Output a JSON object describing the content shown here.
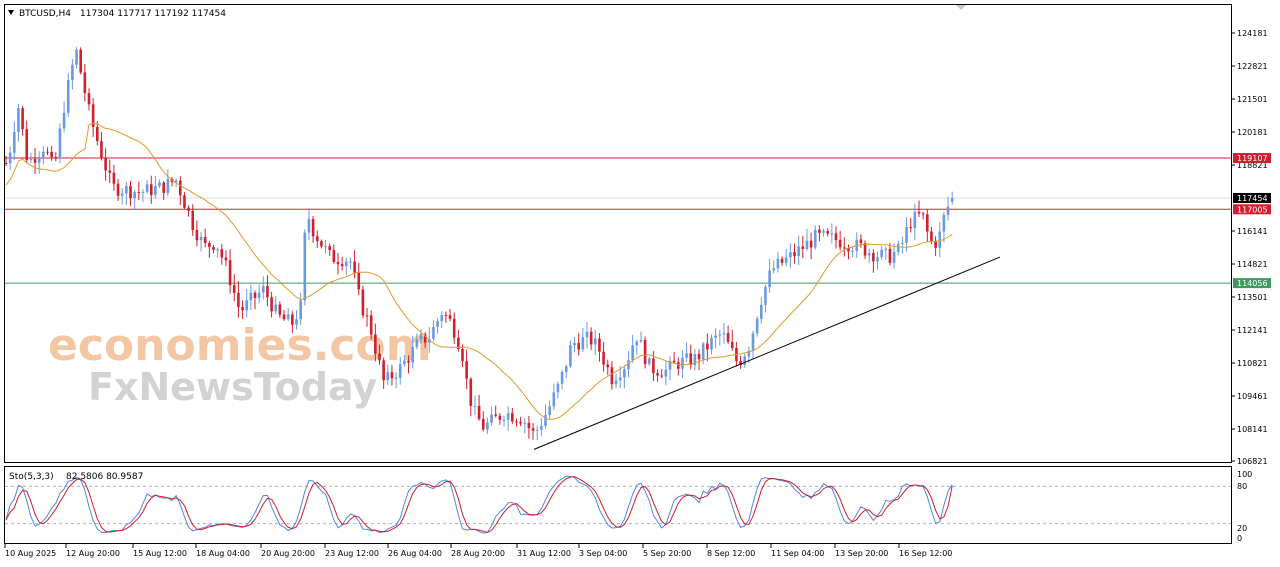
{
  "header": {
    "symbol": "BTCUSD,H4",
    "ohlc": "117304 117717 117192 117454"
  },
  "watermark": {
    "line1": "economies.com",
    "line2": "FxNewsToday"
  },
  "colors": {
    "bull": "#6a9be0",
    "bear": "#d21e2d",
    "ma": "#e09a2a",
    "resistance": "#d21e2d",
    "support": "#3f9a60",
    "trendline": "#000000",
    "stoch_main": "#4f86e6",
    "stoch_signal": "#d21e2d"
  },
  "chart_data": [
    {
      "type": "candlestick",
      "symbol": "BTCUSD",
      "timeframe": "H4",
      "last": {
        "open": 117304,
        "high": 117717,
        "low": 117192,
        "close": 117454
      },
      "ylim": [
        106821,
        125000
      ],
      "price_ticks": [
        "124181",
        "122821",
        "121501",
        "120181",
        "118821",
        "116141",
        "114821",
        "113501",
        "112141",
        "110821",
        "109461",
        "108141",
        "106821"
      ],
      "time_ticks": [
        "10 Aug 2025",
        "12 Aug 20:00",
        "15 Aug 12:00",
        "18 Aug 04:00",
        "20 Aug 20:00",
        "23 Aug 12:00",
        "26 Aug 04:00",
        "28 Aug 20:00",
        "31 Aug 12:00",
        "3 Sep 04:00",
        "5 Sep 20:00",
        "8 Sep 12:00",
        "11 Sep 04:00",
        "13 Sep 20:00",
        "16 Sep 12:00"
      ],
      "horizontal_levels": [
        {
          "value": 119107,
          "label": "119107",
          "role": "resistance"
        },
        {
          "value": 117005,
          "label": "117005",
          "role": "resistance"
        },
        {
          "value": 114056,
          "label": "114056",
          "role": "support"
        }
      ],
      "current_price_label": "117454",
      "trendline": {
        "start": {
          "time": "31 Aug 12:00",
          "value": 107300
        },
        "end_value": 115100
      },
      "close_path": [
        [
          0,
          118600
        ],
        [
          8,
          119000
        ],
        [
          18,
          121300
        ],
        [
          28,
          118900
        ],
        [
          44,
          119600
        ],
        [
          54,
          118600
        ],
        [
          64,
          121200
        ],
        [
          76,
          123500
        ],
        [
          90,
          120800
        ],
        [
          112,
          117900
        ],
        [
          140,
          117700
        ],
        [
          162,
          117900
        ],
        [
          176,
          118200
        ],
        [
          192,
          116500
        ],
        [
          204,
          115500
        ],
        [
          216,
          115700
        ],
        [
          228,
          114500
        ],
        [
          240,
          112900
        ],
        [
          252,
          113400
        ],
        [
          264,
          113800
        ],
        [
          278,
          112700
        ],
        [
          292,
          112400
        ],
        [
          302,
          113200
        ],
        [
          306,
          117000
        ],
        [
          314,
          116100
        ],
        [
          330,
          115100
        ],
        [
          350,
          115000
        ],
        [
          360,
          113300
        ],
        [
          370,
          112300
        ],
        [
          384,
          110000
        ],
        [
          400,
          110600
        ],
        [
          420,
          111700
        ],
        [
          430,
          111900
        ],
        [
          442,
          112900
        ],
        [
          452,
          112400
        ],
        [
          462,
          111300
        ],
        [
          468,
          109700
        ],
        [
          474,
          108800
        ],
        [
          484,
          108200
        ],
        [
          504,
          108800
        ],
        [
          522,
          108600
        ],
        [
          534,
          107900
        ],
        [
          548,
          108900
        ],
        [
          560,
          110000
        ],
        [
          572,
          111600
        ],
        [
          590,
          111800
        ],
        [
          600,
          111300
        ],
        [
          612,
          110200
        ],
        [
          626,
          110800
        ],
        [
          636,
          112000
        ],
        [
          650,
          110600
        ],
        [
          666,
          110500
        ],
        [
          676,
          110800
        ],
        [
          696,
          111000
        ],
        [
          710,
          111600
        ],
        [
          722,
          112000
        ],
        [
          738,
          110800
        ],
        [
          750,
          111600
        ],
        [
          760,
          113300
        ],
        [
          772,
          114600
        ],
        [
          790,
          115100
        ],
        [
          800,
          115400
        ],
        [
          816,
          115900
        ],
        [
          836,
          115800
        ],
        [
          860,
          115500
        ],
        [
          876,
          115200
        ],
        [
          888,
          115100
        ],
        [
          900,
          115400
        ],
        [
          910,
          116500
        ],
        [
          922,
          116800
        ],
        [
          930,
          115700
        ],
        [
          938,
          115700
        ],
        [
          946,
          117000
        ],
        [
          955,
          117454
        ]
      ]
    },
    {
      "type": "line",
      "name": "Sto(5,3,3)",
      "values_text": "82.5806 80.9587",
      "main_last": 82.5806,
      "signal_last": 80.9587,
      "ylim": [
        0,
        100
      ],
      "ticks": [
        "100",
        "80",
        "20",
        "0"
      ],
      "levels": [
        80,
        20
      ]
    }
  ]
}
